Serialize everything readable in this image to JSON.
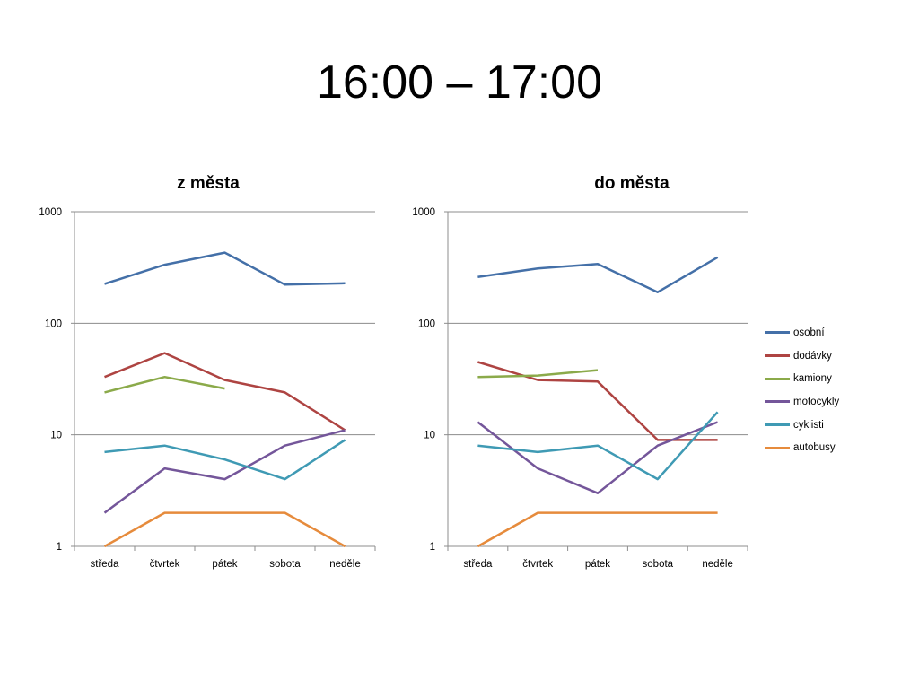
{
  "slide": {
    "title": "16:00 – 17:00"
  },
  "colors": {
    "osobní": "#4470A8",
    "dodávky": "#AE4442",
    "kamiony": "#8BAA4A",
    "motocykly": "#74569A",
    "cyklisti": "#3F9AB4",
    "autobusy": "#E68B3C"
  },
  "legend": {
    "items": [
      "osobní",
      "dodávky",
      "kamiony",
      "motocykly",
      "cyklisti",
      "autobusy"
    ],
    "placement": "right"
  },
  "chart_data": [
    {
      "type": "line",
      "title": "z města",
      "xlabel": "",
      "ylabel": "",
      "y_scale": "log",
      "ylim": [
        1,
        1000
      ],
      "yticks": [
        "1",
        "10",
        "100",
        "1000"
      ],
      "grid": true,
      "categories": [
        "středa",
        "čtvrtek",
        "pátek",
        "sobota",
        "neděle"
      ],
      "series": [
        {
          "name": "osobní",
          "values": [
            225,
            335,
            430,
            222,
            228
          ]
        },
        {
          "name": "dodávky",
          "values": [
            33,
            54,
            31,
            24,
            11
          ]
        },
        {
          "name": "kamiony",
          "values": [
            24,
            33,
            26,
            null,
            null
          ]
        },
        {
          "name": "motocykly",
          "values": [
            2,
            5,
            4,
            8,
            11
          ]
        },
        {
          "name": "cyklisti",
          "values": [
            7,
            8,
            6,
            4,
            9
          ]
        },
        {
          "name": "autobusy",
          "values": [
            1,
            2,
            2,
            2,
            1
          ]
        }
      ]
    },
    {
      "type": "line",
      "title": "do města",
      "xlabel": "",
      "ylabel": "",
      "y_scale": "log",
      "ylim": [
        1,
        1000
      ],
      "yticks": [
        "1",
        "10",
        "100",
        "1000"
      ],
      "grid": true,
      "categories": [
        "středa",
        "čtvrtek",
        "pátek",
        "sobota",
        "neděle"
      ],
      "series": [
        {
          "name": "osobní",
          "values": [
            260,
            310,
            340,
            190,
            390
          ]
        },
        {
          "name": "dodávky",
          "values": [
            45,
            31,
            30,
            9,
            9
          ]
        },
        {
          "name": "kamiony",
          "values": [
            33,
            34,
            38,
            null,
            null
          ]
        },
        {
          "name": "motocykly",
          "values": [
            13,
            5,
            3,
            8,
            13
          ]
        },
        {
          "name": "cyklisti",
          "values": [
            8,
            7,
            8,
            4,
            16
          ]
        },
        {
          "name": "autobusy",
          "values": [
            1,
            2,
            2,
            2,
            2
          ]
        }
      ]
    }
  ]
}
